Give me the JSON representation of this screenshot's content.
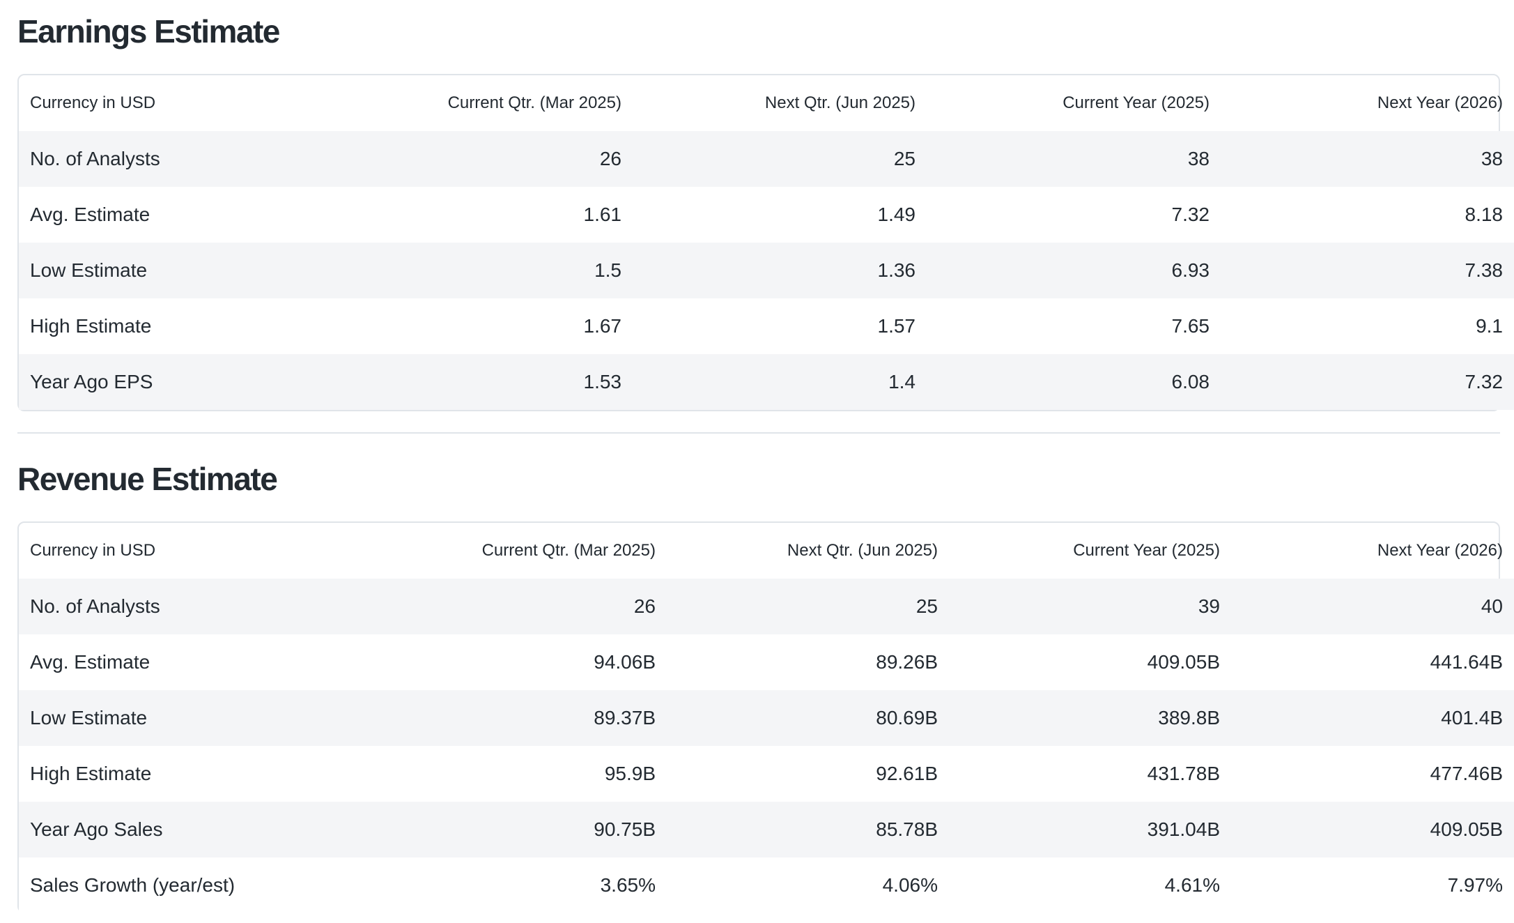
{
  "earnings": {
    "title": "Earnings Estimate",
    "headers": [
      "Currency in USD",
      "Current Qtr. (Mar 2025)",
      "Next Qtr. (Jun 2025)",
      "Current Year (2025)",
      "Next Year (2026)"
    ],
    "rows": [
      [
        "No. of Analysts",
        "26",
        "25",
        "38",
        "38"
      ],
      [
        "Avg. Estimate",
        "1.61",
        "1.49",
        "7.32",
        "8.18"
      ],
      [
        "Low Estimate",
        "1.5",
        "1.36",
        "6.93",
        "7.38"
      ],
      [
        "High Estimate",
        "1.67",
        "1.57",
        "7.65",
        "9.1"
      ],
      [
        "Year Ago EPS",
        "1.53",
        "1.4",
        "6.08",
        "7.32"
      ]
    ]
  },
  "revenue": {
    "title": "Revenue Estimate",
    "headers": [
      "Currency in USD",
      "Current Qtr. (Mar 2025)",
      "Next Qtr. (Jun 2025)",
      "Current Year (2025)",
      "Next Year (2026)"
    ],
    "rows": [
      [
        "No. of Analysts",
        "26",
        "25",
        "39",
        "40"
      ],
      [
        "Avg. Estimate",
        "94.06B",
        "89.26B",
        "409.05B",
        "441.64B"
      ],
      [
        "Low Estimate",
        "89.37B",
        "80.69B",
        "389.8B",
        "401.4B"
      ],
      [
        "High Estimate",
        "95.9B",
        "92.61B",
        "431.78B",
        "477.46B"
      ],
      [
        "Year Ago Sales",
        "90.75B",
        "85.78B",
        "391.04B",
        "409.05B"
      ],
      [
        "Sales Growth (year/est)",
        "3.65%",
        "4.06%",
        "4.61%",
        "7.97%"
      ]
    ]
  }
}
